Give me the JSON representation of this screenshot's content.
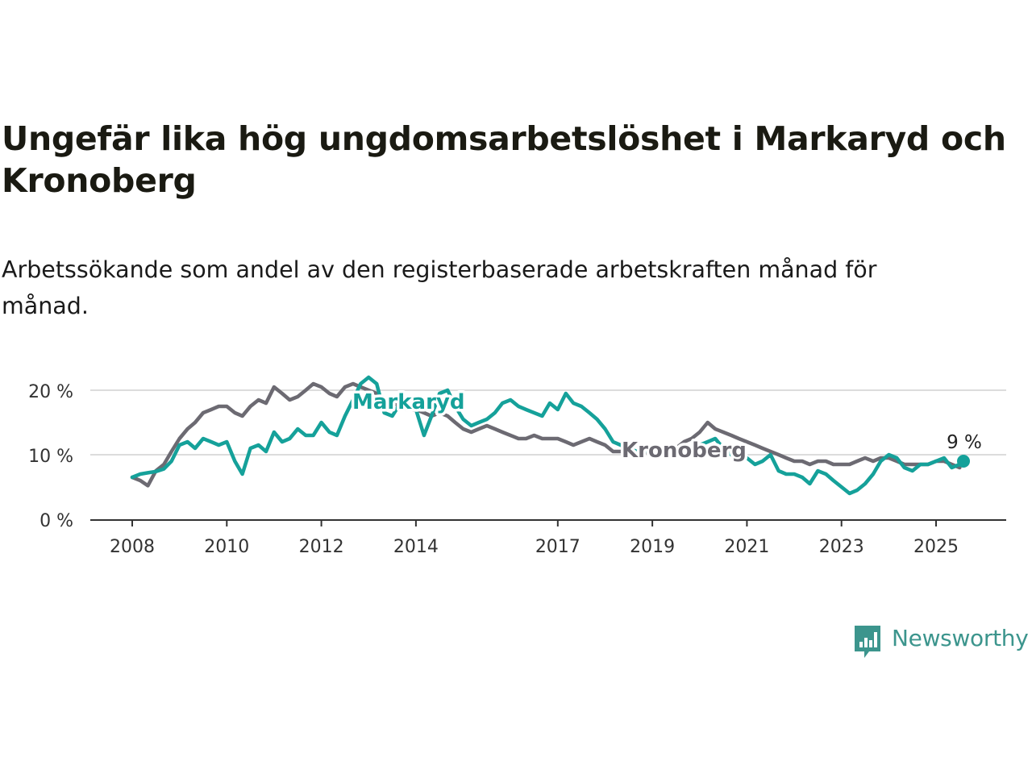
{
  "title": "Ungefär lika hög ungdomsarbetslöshet i Markaryd och Kronoberg",
  "subtitle": "Arbetssökande som andel av den registerbaserade arbetskraften månad för månad.",
  "brand": {
    "name": "Newsworthy",
    "logo_icon": "bar-chart-speech-bubble-icon",
    "color": "#3c958d"
  },
  "colors": {
    "markaryd": "#15a19a",
    "kronoberg": "#6c6a72",
    "grid": "#dcdcdc",
    "axis": "#333333"
  },
  "chart_data": {
    "type": "line",
    "title": "Ungefär lika hög ungdomsarbetslöshet i Markaryd och Kronoberg",
    "subtitle": "Arbetssökande som andel av den registerbaserade arbetskraften månad för månad.",
    "x_unit": "year (decimal)",
    "xlim": [
      2007.75,
      2026.5
    ],
    "ylim": [
      0,
      22
    ],
    "y_ticks": [
      0,
      10,
      20
    ],
    "y_tick_labels": [
      "0 %",
      "10 %",
      "20 %"
    ],
    "x_ticks": [
      2008,
      2010,
      2012,
      2014,
      2017,
      2019,
      2021,
      2023,
      2025
    ],
    "x_tick_labels": [
      "2008",
      "2010",
      "2012",
      "2014",
      "2017",
      "2019",
      "2021",
      "2023",
      "2025"
    ],
    "grid": "horizontal",
    "end_label": "9 %",
    "series": [
      {
        "name": "Markaryd",
        "color": "#15a19a",
        "x": [
          2008.0,
          2008.17,
          2008.33,
          2008.5,
          2008.67,
          2008.83,
          2009.0,
          2009.17,
          2009.33,
          2009.5,
          2009.67,
          2009.83,
          2010.0,
          2010.17,
          2010.33,
          2010.5,
          2010.67,
          2010.83,
          2011.0,
          2011.17,
          2011.33,
          2011.5,
          2011.67,
          2011.83,
          2012.0,
          2012.17,
          2012.33,
          2012.5,
          2012.67,
          2012.83,
          2013.0,
          2013.17,
          2013.33,
          2013.5,
          2013.67,
          2013.83,
          2014.0,
          2014.17,
          2014.33,
          2014.5,
          2014.67,
          2014.83,
          2015.0,
          2015.17,
          2015.33,
          2015.5,
          2015.67,
          2015.83,
          2016.0,
          2016.17,
          2016.33,
          2016.5,
          2016.67,
          2016.83,
          2017.0,
          2017.17,
          2017.33,
          2017.5,
          2017.67,
          2017.83,
          2018.0,
          2018.17,
          2018.33,
          2018.5,
          2018.67,
          2018.83,
          2019.0,
          2019.17,
          2019.33,
          2019.5,
          2019.67,
          2019.83,
          2020.0,
          2020.17,
          2020.33,
          2020.5,
          2020.67,
          2020.83,
          2021.0,
          2021.17,
          2021.33,
          2021.5,
          2021.67,
          2021.83,
          2022.0,
          2022.17,
          2022.33,
          2022.5,
          2022.67,
          2022.83,
          2023.0,
          2023.17,
          2023.33,
          2023.5,
          2023.67,
          2023.83,
          2024.0,
          2024.17,
          2024.33,
          2024.5,
          2024.67,
          2024.83,
          2025.0,
          2025.17,
          2025.33,
          2025.5,
          2025.58
        ],
        "values": [
          6.5,
          7.0,
          7.2,
          7.4,
          7.8,
          9.0,
          11.5,
          12.0,
          11.0,
          12.5,
          12.0,
          11.5,
          12.0,
          9.0,
          7.0,
          11.0,
          11.5,
          10.5,
          13.5,
          12.0,
          12.5,
          14.0,
          13.0,
          13.0,
          15.0,
          13.5,
          13.0,
          16.0,
          18.5,
          21.0,
          22.0,
          21.0,
          16.5,
          16.0,
          18.0,
          18.5,
          17.0,
          13.0,
          16.0,
          19.5,
          20.0,
          17.5,
          15.5,
          14.5,
          15.0,
          15.5,
          16.5,
          18.0,
          18.5,
          17.5,
          17.0,
          16.5,
          16.0,
          18.0,
          17.0,
          19.5,
          18.0,
          17.5,
          16.5,
          15.5,
          14.0,
          12.0,
          11.5,
          11.0,
          10.5,
          10.5,
          11.0,
          10.5,
          11.0,
          10.0,
          10.0,
          10.5,
          11.5,
          12.0,
          12.5,
          11.0,
          10.0,
          10.5,
          9.5,
          8.5,
          9.0,
          10.0,
          7.5,
          7.0,
          7.0,
          6.5,
          5.5,
          7.5,
          7.0,
          6.0,
          5.0,
          4.0,
          4.5,
          5.5,
          7.0,
          9.0,
          10.0,
          9.5,
          8.0,
          7.5,
          8.5,
          8.5,
          9.0,
          9.5,
          8.0,
          8.5,
          9.0
        ]
      },
      {
        "name": "Kronoberg",
        "color": "#6c6a72",
        "x": [
          2008.0,
          2008.17,
          2008.33,
          2008.5,
          2008.67,
          2008.83,
          2009.0,
          2009.17,
          2009.33,
          2009.5,
          2009.67,
          2009.83,
          2010.0,
          2010.17,
          2010.33,
          2010.5,
          2010.67,
          2010.83,
          2011.0,
          2011.17,
          2011.33,
          2011.5,
          2011.67,
          2011.83,
          2012.0,
          2012.17,
          2012.33,
          2012.5,
          2012.67,
          2012.83,
          2013.0,
          2013.17,
          2013.33,
          2013.5,
          2013.67,
          2013.83,
          2014.0,
          2014.17,
          2014.33,
          2014.5,
          2014.67,
          2014.83,
          2015.0,
          2015.17,
          2015.33,
          2015.5,
          2015.67,
          2015.83,
          2016.0,
          2016.17,
          2016.33,
          2016.5,
          2016.67,
          2016.83,
          2017.0,
          2017.17,
          2017.33,
          2017.5,
          2017.67,
          2017.83,
          2018.0,
          2018.17,
          2018.33,
          2018.5,
          2018.67,
          2018.83,
          2019.0,
          2019.17,
          2019.33,
          2019.5,
          2019.67,
          2019.83,
          2020.0,
          2020.17,
          2020.33,
          2020.5,
          2020.67,
          2020.83,
          2021.0,
          2021.17,
          2021.33,
          2021.5,
          2021.67,
          2021.83,
          2022.0,
          2022.17,
          2022.33,
          2022.5,
          2022.67,
          2022.83,
          2023.0,
          2023.17,
          2023.33,
          2023.5,
          2023.67,
          2023.83,
          2024.0,
          2024.17,
          2024.33,
          2024.5,
          2024.67,
          2024.83,
          2025.0,
          2025.17,
          2025.33,
          2025.5
        ],
        "values": [
          6.5,
          6.0,
          5.2,
          7.5,
          8.5,
          10.5,
          12.5,
          14.0,
          15.0,
          16.5,
          17.0,
          17.5,
          17.5,
          16.5,
          16.0,
          17.5,
          18.5,
          18.0,
          20.5,
          19.5,
          18.5,
          19.0,
          20.0,
          21.0,
          20.5,
          19.5,
          19.0,
          20.5,
          21.0,
          20.5,
          20.0,
          19.5,
          18.5,
          18.0,
          17.5,
          17.0,
          17.0,
          16.5,
          16.0,
          16.5,
          16.0,
          15.0,
          14.0,
          13.5,
          14.0,
          14.5,
          14.0,
          13.5,
          13.0,
          12.5,
          12.5,
          13.0,
          12.5,
          12.5,
          12.5,
          12.0,
          11.5,
          12.0,
          12.5,
          12.0,
          11.5,
          10.5,
          10.5,
          10.5,
          10.0,
          10.5,
          10.0,
          10.5,
          10.5,
          11.0,
          12.0,
          12.5,
          13.5,
          15.0,
          14.0,
          13.5,
          13.0,
          12.5,
          12.0,
          11.5,
          11.0,
          10.5,
          10.0,
          9.5,
          9.0,
          9.0,
          8.5,
          9.0,
          9.0,
          8.5,
          8.5,
          8.5,
          9.0,
          9.5,
          9.0,
          9.5,
          9.5,
          9.0,
          8.5,
          8.5,
          8.5,
          8.5,
          9.0,
          9.0,
          8.5,
          8.0
        ]
      }
    ]
  }
}
